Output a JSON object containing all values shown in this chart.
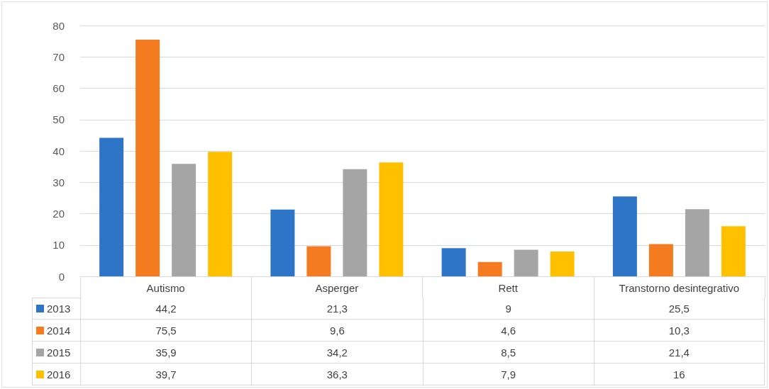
{
  "chart_data": {
    "type": "bar",
    "categories": [
      "Autismo",
      "Asperger",
      "Rett",
      "Transtorno desintegrativo"
    ],
    "series": [
      {
        "name": "2013",
        "color": "#2e75c7",
        "values": [
          44.2,
          21.3,
          9,
          25.5
        ],
        "value_labels": [
          "44,2",
          "21,3",
          "9",
          "25,5"
        ]
      },
      {
        "name": "2014",
        "color": "#f47b20",
        "values": [
          75.5,
          9.6,
          4.6,
          10.3
        ],
        "value_labels": [
          "75,5",
          "9,6",
          "4,6",
          "10,3"
        ]
      },
      {
        "name": "2015",
        "color": "#a5a5a5",
        "values": [
          35.9,
          34.2,
          8.5,
          21.4
        ],
        "value_labels": [
          "35,9",
          "34,2",
          "8,5",
          "21,4"
        ]
      },
      {
        "name": "2016",
        "color": "#ffc000",
        "values": [
          39.7,
          36.3,
          7.9,
          16
        ],
        "value_labels": [
          "39,7",
          "36,3",
          "7,9",
          "16"
        ]
      }
    ],
    "ylim": [
      0,
      80
    ],
    "yticks": [
      0,
      10,
      20,
      30,
      40,
      50,
      60,
      70,
      80
    ],
    "grid": "y",
    "legend": "bottom left"
  }
}
